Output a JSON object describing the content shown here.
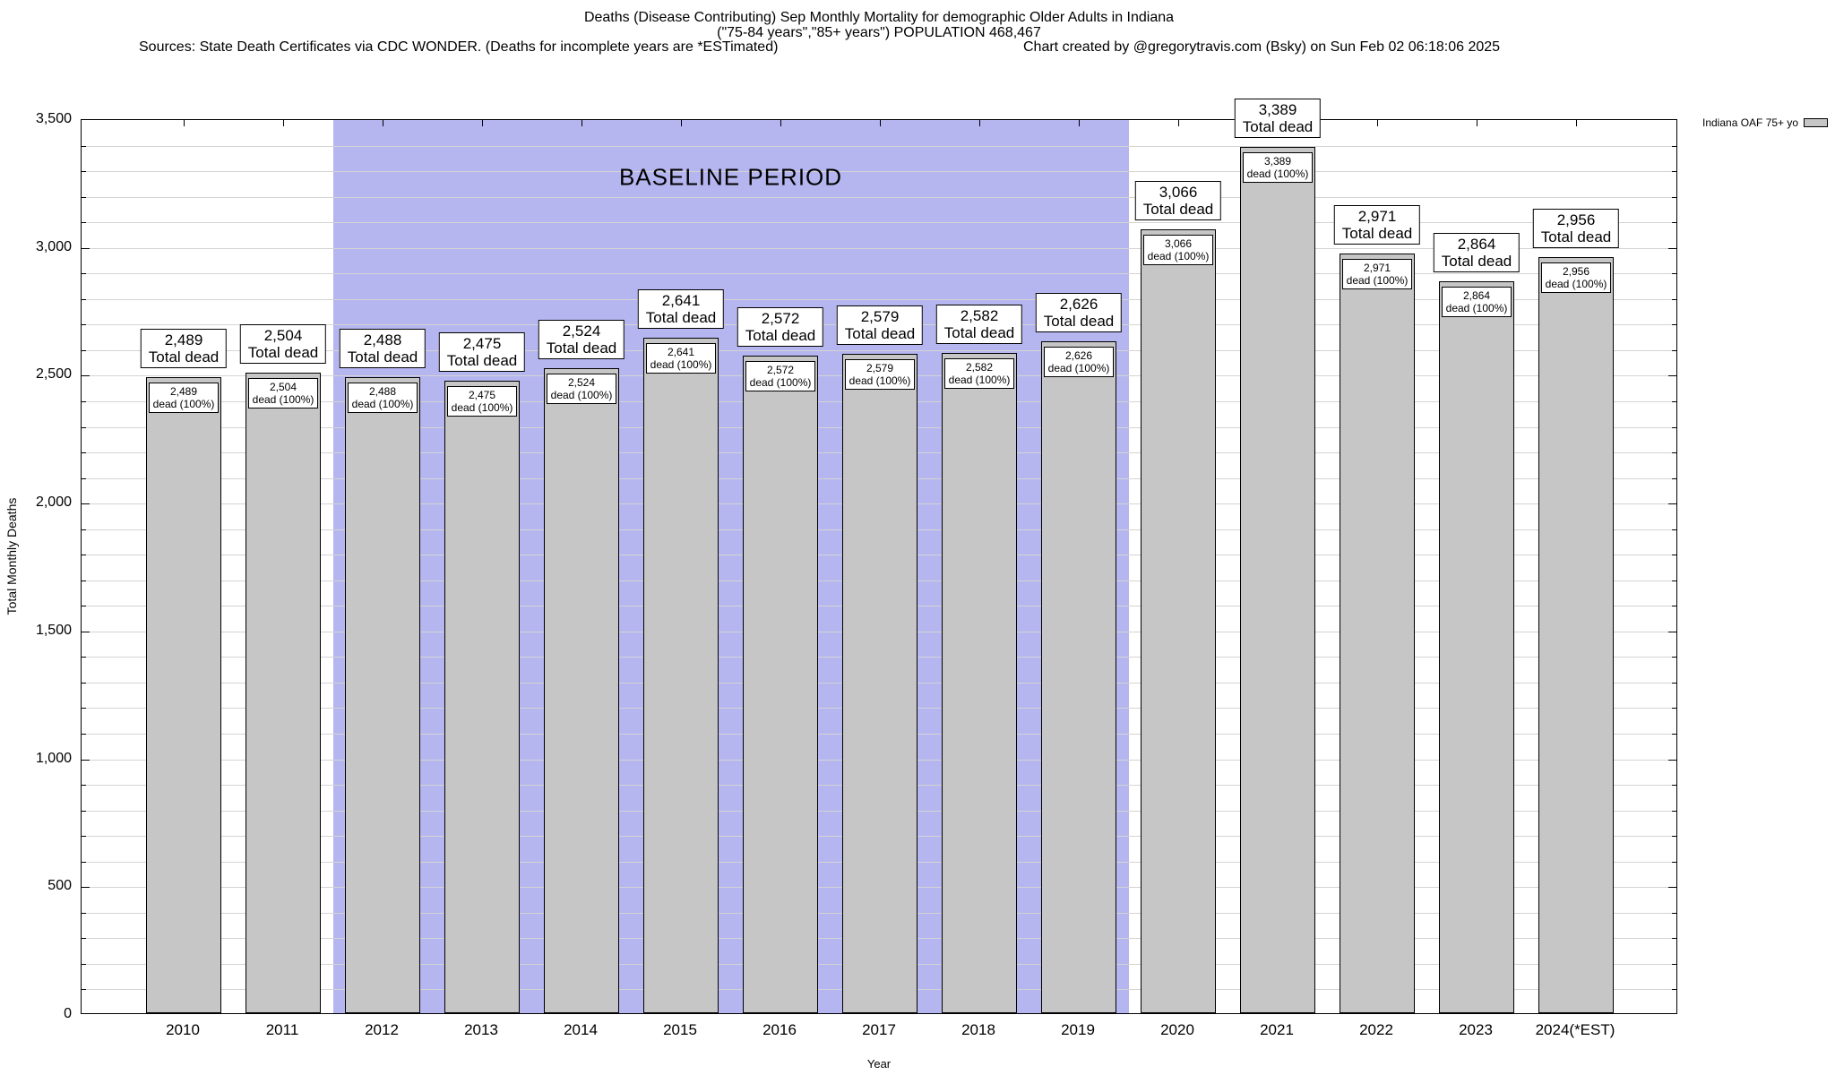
{
  "header": {
    "title_line1": "Deaths (Disease Contributing) Sep Monthly Mortality for demographic Older Adults in Indiana",
    "title_line2": "(\"75-84 years\",\"85+ years\") POPULATION 468,467",
    "sources": "Sources: State Death Certificates via CDC WONDER. (Deaths for incomplete years are *ESTimated)",
    "credit": "Chart created by @gregorytravis.com (Bsky) on Sun Feb 02 06:18:06 2025"
  },
  "legend": {
    "label": "Indiana OAF 75+ yo",
    "swatch_color": "#c6c6c6"
  },
  "chart_data": {
    "type": "bar",
    "title": "Deaths (Disease Contributing) Sep Monthly Mortality for demographic Older Adults in Indiana",
    "xlabel": "Year",
    "ylabel": "Total Monthly Deaths",
    "ylim": [
      0,
      3500
    ],
    "y_major_step": 500,
    "y_minor_step": 100,
    "y_tick_labels": [
      "0",
      "500",
      "1,000",
      "1,500",
      "2,000",
      "2,500",
      "3,000",
      "3,500"
    ],
    "grid": true,
    "legend_position": "top-right",
    "categories": [
      "2010",
      "2011",
      "2012",
      "2013",
      "2014",
      "2015",
      "2016",
      "2017",
      "2018",
      "2019",
      "2020",
      "2021",
      "2022",
      "2023",
      "2024(*EST)"
    ],
    "series": [
      {
        "name": "Indiana OAF 75+ yo",
        "values": [
          2489,
          2504,
          2488,
          2475,
          2524,
          2641,
          2572,
          2579,
          2582,
          2626,
          3066,
          3389,
          2971,
          2864,
          2956
        ],
        "formatted": [
          "2,489",
          "2,504",
          "2,488",
          "2,475",
          "2,524",
          "2,641",
          "2,572",
          "2,579",
          "2,582",
          "2,626",
          "3,066",
          "3,389",
          "2,971",
          "2,864",
          "2,956"
        ]
      }
    ],
    "bar_color": "#c6c6c6",
    "bar_label_top_suffix": "Total dead",
    "bar_label_inner_suffix": "dead (100%)",
    "annotations": [
      {
        "label": "BASELINE PERIOD",
        "x_from_category": "2012",
        "x_to_category": "2019",
        "x_from_index": 1.5,
        "x_to_index": 9.5,
        "color": "#b5b5f0"
      }
    ]
  }
}
